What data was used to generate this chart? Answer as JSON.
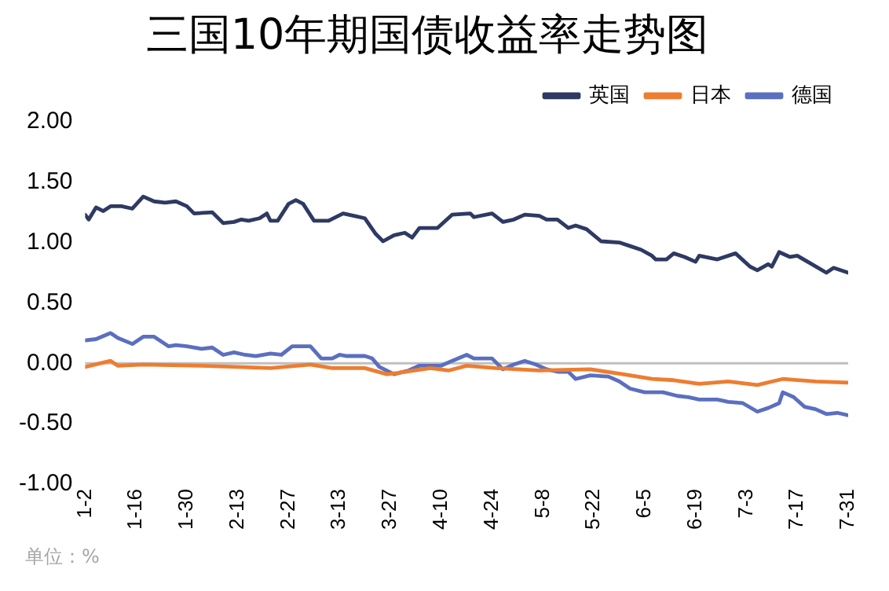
{
  "chart_data": {
    "type": "line",
    "title": "三国10年期国债收益率走势图",
    "annotations": [
      "单位：%"
    ],
    "legend": "top right",
    "marker": "none",
    "line_style": "solid",
    "grid": false,
    "xlim": [
      "--01-02",
      "--07-31"
    ],
    "xticks": [
      {
        "value": "--01-02",
        "label": "1-2"
      },
      {
        "value": "--01-16",
        "label": "1-16"
      },
      {
        "value": "--01-30",
        "label": "1-30"
      },
      {
        "value": "--02-13",
        "label": "2-13"
      },
      {
        "value": "--02-27",
        "label": "2-27"
      },
      {
        "value": "--03-13",
        "label": "3-13"
      },
      {
        "value": "--03-27",
        "label": "3-27"
      },
      {
        "value": "--04-10",
        "label": "4-10"
      },
      {
        "value": "--04-24",
        "label": "4-24"
      },
      {
        "value": "--05-08",
        "label": "5-8"
      },
      {
        "value": "--05-22",
        "label": "5-22"
      },
      {
        "value": "--06-05",
        "label": "6-5"
      },
      {
        "value": "--06-19",
        "label": "6-19"
      },
      {
        "value": "--07-03",
        "label": "7-3"
      },
      {
        "value": "--07-17",
        "label": "7-17"
      },
      {
        "value": "--07-31",
        "label": "7-31"
      }
    ],
    "ylim": [
      -1,
      2
    ],
    "yticks": [
      {
        "value": 2,
        "label": "2.00"
      },
      {
        "value": 1.5,
        "label": "1.50"
      },
      {
        "value": 1,
        "label": "1.00"
      },
      {
        "value": 0.5,
        "label": "0.50"
      },
      {
        "value": 0,
        "label": "0.00"
      },
      {
        "value": -0.5,
        "label": "-0.50"
      },
      {
        "value": -1,
        "label": "-1.00"
      }
    ],
    "ref_lines": [
      {
        "axis": "y",
        "value": 0,
        "color": "#bfbfbf"
      }
    ],
    "series": [
      {
        "name": "英国",
        "color": "#2e3a63",
        "x": [
          "--01-02",
          "--01-03",
          "--01-05",
          "--01-07",
          "--01-09",
          "--01-12",
          "--01-15",
          "--01-18",
          "--01-21",
          "--01-24",
          "--01-27",
          "--01-30",
          "--02-01",
          "--02-06",
          "--02-09",
          "--02-12",
          "--02-14",
          "--02-16",
          "--02-19",
          "--02-21",
          "--02-22",
          "--02-24",
          "--02-27",
          "--03-01",
          "--03-03",
          "--03-06",
          "--03-09",
          "--03-10",
          "--03-14",
          "--03-17",
          "--03-20",
          "--03-23",
          "--03-25",
          "--03-28",
          "--03-31",
          "--04-02",
          "--04-04",
          "--04-09",
          "--04-13",
          "--04-18",
          "--04-19",
          "--04-24",
          "--04-27",
          "--04-30",
          "--05-03",
          "--05-07",
          "--05-09",
          "--05-12",
          "--05-15",
          "--05-17",
          "--05-20",
          "--05-24",
          "--05-29",
          "--06-01",
          "--06-04",
          "--06-07",
          "--06-08",
          "--06-11",
          "--06-13",
          "--06-16",
          "--06-19",
          "--06-20",
          "--06-25",
          "--06-30",
          "--07-04",
          "--07-06",
          "--07-09",
          "--07-10",
          "--07-12",
          "--07-15",
          "--07-17",
          "--07-21",
          "--07-25",
          "--07-27",
          "--07-31"
        ],
        "values": [
          1.23,
          1.19,
          1.29,
          1.26,
          1.3,
          1.3,
          1.28,
          1.38,
          1.34,
          1.33,
          1.34,
          1.3,
          1.24,
          1.25,
          1.16,
          1.17,
          1.19,
          1.18,
          1.2,
          1.24,
          1.18,
          1.18,
          1.32,
          1.35,
          1.32,
          1.18,
          1.18,
          1.18,
          1.24,
          1.22,
          1.2,
          1.07,
          1.01,
          1.06,
          1.08,
          1.04,
          1.12,
          1.12,
          1.23,
          1.24,
          1.21,
          1.24,
          1.17,
          1.19,
          1.23,
          1.22,
          1.19,
          1.19,
          1.12,
          1.14,
          1.11,
          1.01,
          1.0,
          0.97,
          0.94,
          0.89,
          0.86,
          0.86,
          0.91,
          0.88,
          0.84,
          0.89,
          0.86,
          0.91,
          0.8,
          0.77,
          0.82,
          0.8,
          0.92,
          0.88,
          0.89,
          0.82,
          0.75,
          0.79,
          0.75
        ]
      },
      {
        "name": "日本",
        "color": "#ed7d31",
        "x": [
          "--01-02",
          "--01-09",
          "--01-11",
          "--01-18",
          "--02-03",
          "--02-13",
          "--02-22",
          "--03-05",
          "--03-11",
          "--03-20",
          "--03-26",
          "--03-29",
          "--04-07",
          "--04-12",
          "--04-17",
          "--04-25",
          "--05-07",
          "--05-21",
          "--05-30",
          "--06-07",
          "--06-13",
          "--06-20",
          "--06-28",
          "--07-06",
          "--07-13",
          "--07-22",
          "--07-31"
        ],
        "values": [
          -0.03,
          0.02,
          -0.02,
          -0.01,
          -0.02,
          -0.03,
          -0.04,
          -0.01,
          -0.04,
          -0.04,
          -0.09,
          -0.08,
          -0.04,
          -0.06,
          -0.02,
          -0.04,
          -0.06,
          -0.05,
          -0.09,
          -0.13,
          -0.14,
          -0.17,
          -0.15,
          -0.18,
          -0.13,
          -0.15,
          -0.16
        ]
      },
      {
        "name": "德国",
        "color": "#5b6fc0",
        "x": [
          "--01-02",
          "--01-05",
          "--01-09",
          "--01-11",
          "--01-15",
          "--01-18",
          "--01-21",
          "--01-25",
          "--01-27",
          "--01-30",
          "--02-03",
          "--02-06",
          "--02-09",
          "--02-12",
          "--02-15",
          "--02-18",
          "--02-22",
          "--02-25",
          "--02-28",
          "--03-05",
          "--03-08",
          "--03-11",
          "--03-13",
          "--03-15",
          "--03-20",
          "--03-22",
          "--03-24",
          "--03-28",
          "--04-01",
          "--04-04",
          "--04-10",
          "--04-13",
          "--04-17",
          "--04-19",
          "--04-24",
          "--04-27",
          "--04-30",
          "--05-03",
          "--05-06",
          "--05-09",
          "--05-12",
          "--05-15",
          "--05-17",
          "--05-21",
          "--05-26",
          "--05-29",
          "--06-01",
          "--06-05",
          "--06-10",
          "--06-14",
          "--06-17",
          "--06-20",
          "--06-25",
          "--06-28",
          "--07-02",
          "--07-06",
          "--07-09",
          "--07-12",
          "--07-13",
          "--07-16",
          "--07-19",
          "--07-22",
          "--07-25",
          "--07-28",
          "--07-31"
        ],
        "values": [
          0.19,
          0.2,
          0.25,
          0.21,
          0.16,
          0.22,
          0.22,
          0.14,
          0.15,
          0.14,
          0.12,
          0.13,
          0.07,
          0.09,
          0.07,
          0.06,
          0.08,
          0.07,
          0.14,
          0.14,
          0.04,
          0.04,
          0.07,
          0.06,
          0.06,
          0.04,
          -0.03,
          -0.09,
          -0.06,
          -0.02,
          -0.02,
          0.02,
          0.07,
          0.04,
          0.04,
          -0.05,
          -0.01,
          0.02,
          -0.01,
          -0.05,
          -0.07,
          -0.07,
          -0.13,
          -0.1,
          -0.11,
          -0.15,
          -0.21,
          -0.24,
          -0.24,
          -0.27,
          -0.28,
          -0.3,
          -0.3,
          -0.32,
          -0.33,
          -0.4,
          -0.37,
          -0.33,
          -0.24,
          -0.28,
          -0.36,
          -0.38,
          -0.42,
          -0.41,
          -0.43
        ]
      }
    ]
  }
}
